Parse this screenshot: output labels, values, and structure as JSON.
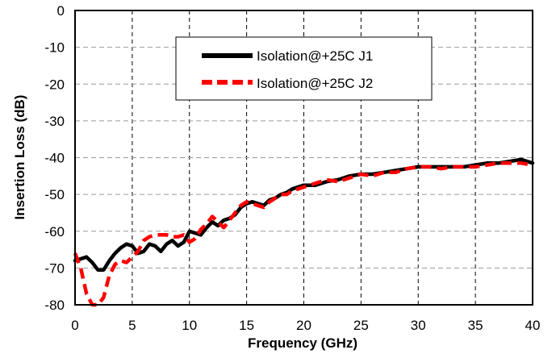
{
  "chart_data": {
    "type": "line",
    "title": "",
    "xlabel": "Frequency (GHz)",
    "ylabel": "Insertion Loss (dB)",
    "xlim": [
      0,
      40
    ],
    "ylim": [
      -80,
      0
    ],
    "xticks": [
      "0",
      "5",
      "10",
      "15",
      "20",
      "25",
      "30",
      "35",
      "40"
    ],
    "yticks": [
      "0",
      "-10",
      "-20",
      "-30",
      "-40",
      "-50",
      "-60",
      "-70",
      "-80"
    ],
    "grid": true,
    "legend_position": "top-center",
    "series": [
      {
        "name": "Isolation@+25C J1",
        "color": "#000000",
        "dash": "solid",
        "points": [
          [
            0,
            -68
          ],
          [
            0.5,
            -67.5
          ],
          [
            1,
            -67
          ],
          [
            1.5,
            -68.5
          ],
          [
            2,
            -70.5
          ],
          [
            2.5,
            -70.5
          ],
          [
            3,
            -68
          ],
          [
            3.5,
            -66
          ],
          [
            4,
            -64.5
          ],
          [
            4.5,
            -63.5
          ],
          [
            5,
            -64
          ],
          [
            5.5,
            -66
          ],
          [
            6,
            -65.5
          ],
          [
            6.5,
            -63.5
          ],
          [
            7,
            -64
          ],
          [
            7.5,
            -65.5
          ],
          [
            8,
            -63.5
          ],
          [
            8.5,
            -62.5
          ],
          [
            9,
            -64
          ],
          [
            9.5,
            -63
          ],
          [
            10,
            -60
          ],
          [
            10.5,
            -60.5
          ],
          [
            11,
            -61
          ],
          [
            11.5,
            -59
          ],
          [
            12,
            -57.5
          ],
          [
            12.5,
            -58.5
          ],
          [
            13,
            -57
          ],
          [
            13.5,
            -56.5
          ],
          [
            14,
            -55.5
          ],
          [
            14.5,
            -53.5
          ],
          [
            15,
            -52.5
          ],
          [
            15.5,
            -52
          ],
          [
            16,
            -52.5
          ],
          [
            16.5,
            -53
          ],
          [
            17,
            -51.5
          ],
          [
            17.5,
            -51
          ],
          [
            18,
            -50
          ],
          [
            18.5,
            -49.5
          ],
          [
            19,
            -48.5
          ],
          [
            20,
            -47.5
          ],
          [
            21,
            -47.5
          ],
          [
            22,
            -46.5
          ],
          [
            23,
            -46
          ],
          [
            24,
            -45
          ],
          [
            25,
            -44.5
          ],
          [
            26,
            -44.5
          ],
          [
            27,
            -44
          ],
          [
            28,
            -43.5
          ],
          [
            29,
            -43
          ],
          [
            30,
            -42.5
          ],
          [
            31,
            -42.5
          ],
          [
            32,
            -42.5
          ],
          [
            33,
            -42.5
          ],
          [
            34,
            -42.5
          ],
          [
            35,
            -42
          ],
          [
            36,
            -41.5
          ],
          [
            37,
            -41.5
          ],
          [
            38,
            -41
          ],
          [
            39,
            -40.5
          ],
          [
            40,
            -41.5
          ]
        ]
      },
      {
        "name": "Isolation@+25C J2",
        "color": "#ff0000",
        "dash": "dashed",
        "points": [
          [
            0,
            -66
          ],
          [
            0.5,
            -70
          ],
          [
            1,
            -77
          ],
          [
            1.5,
            -80
          ],
          [
            2,
            -80
          ],
          [
            2.5,
            -78
          ],
          [
            3,
            -72
          ],
          [
            3.5,
            -69
          ],
          [
            4,
            -68
          ],
          [
            4.5,
            -68.5
          ],
          [
            5,
            -67
          ],
          [
            5.5,
            -65.5
          ],
          [
            6,
            -62.5
          ],
          [
            6.5,
            -61.5
          ],
          [
            7,
            -61
          ],
          [
            7.5,
            -61
          ],
          [
            8,
            -61
          ],
          [
            8.5,
            -61.5
          ],
          [
            9,
            -61.5
          ],
          [
            9.5,
            -61
          ],
          [
            10,
            -63
          ],
          [
            10.5,
            -62
          ],
          [
            11,
            -59.5
          ],
          [
            11.5,
            -58
          ],
          [
            12,
            -56
          ],
          [
            12.5,
            -57.5
          ],
          [
            13,
            -59
          ],
          [
            13.5,
            -57
          ],
          [
            14,
            -55
          ],
          [
            14.5,
            -53
          ],
          [
            15,
            -52
          ],
          [
            15.5,
            -52.5
          ],
          [
            16,
            -53
          ],
          [
            16.5,
            -53.5
          ],
          [
            17,
            -52
          ],
          [
            17.5,
            -51
          ],
          [
            18,
            -50
          ],
          [
            18.5,
            -50
          ],
          [
            19,
            -49
          ],
          [
            20,
            -48
          ],
          [
            21,
            -47
          ],
          [
            22,
            -46
          ],
          [
            23,
            -46.5
          ],
          [
            24,
            -45.5
          ],
          [
            25,
            -44.5
          ],
          [
            26,
            -45
          ],
          [
            27,
            -44
          ],
          [
            28,
            -44
          ],
          [
            29,
            -43
          ],
          [
            30,
            -42.5
          ],
          [
            31,
            -42.5
          ],
          [
            32,
            -43
          ],
          [
            33,
            -42.5
          ],
          [
            34,
            -42.5
          ],
          [
            35,
            -42.5
          ],
          [
            36,
            -42
          ],
          [
            37,
            -41.5
          ],
          [
            38,
            -41.5
          ],
          [
            39,
            -41.5
          ],
          [
            40,
            -42
          ]
        ]
      }
    ]
  }
}
